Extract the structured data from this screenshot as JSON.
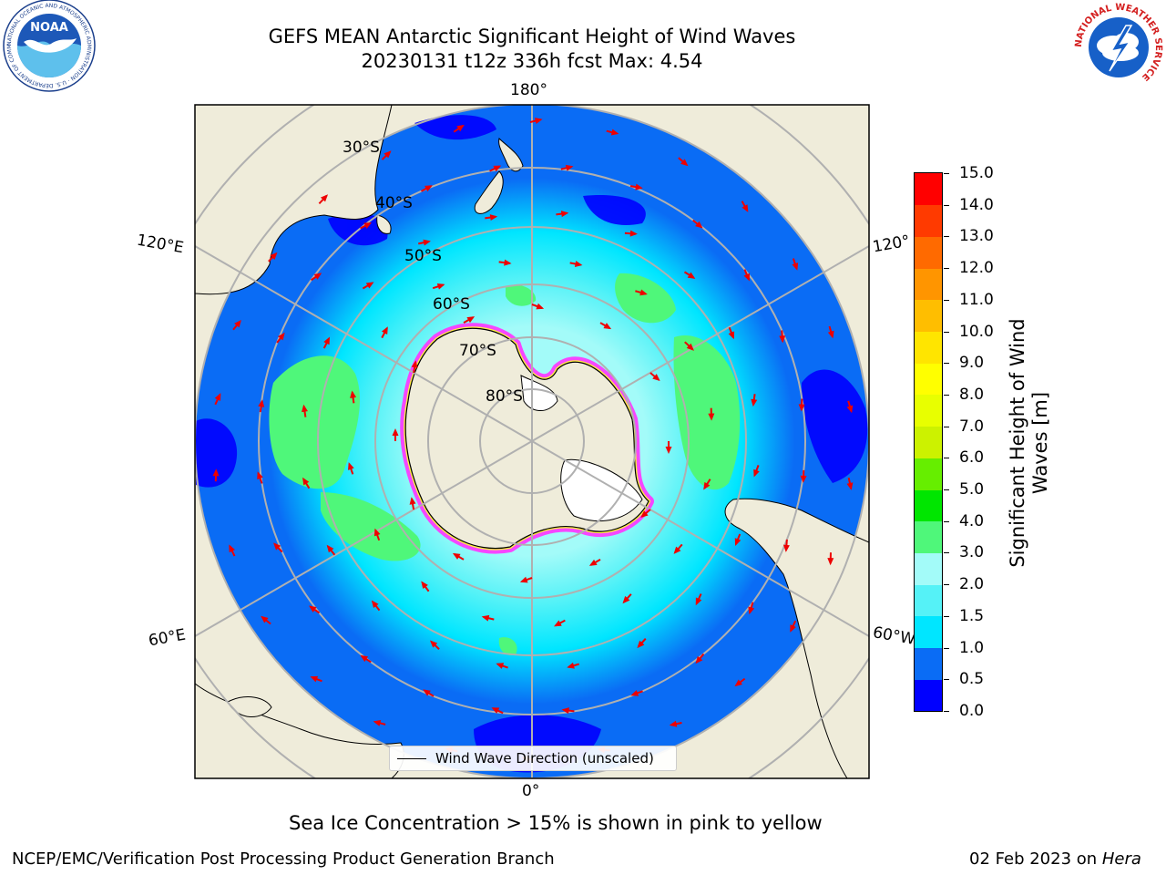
{
  "title": {
    "line1": "GEFS MEAN Antarctic Significant Height of Wind Waves",
    "line2": "20230131 t12z 336h fcst   Max: 4.54"
  },
  "map": {
    "projection": "south polar stereographic",
    "longitude_labels": [
      "180°",
      "120°E",
      "120°",
      "60°E",
      "60°W",
      "0°"
    ],
    "latitude_labels": [
      "30°S",
      "40°S",
      "50°S",
      "60°S",
      "70°S",
      "80°S"
    ],
    "colors": {
      "land": "#efecda",
      "graticule": "#b0b0b0",
      "arrow": "#ee0000",
      "sea_ice_low": "#ff33ff",
      "sea_ice_high": "#ffee44"
    }
  },
  "legend": {
    "label": "Wind Wave Direction (unscaled)"
  },
  "colorbar": {
    "title": "Significant Height of Wind Waves [m]",
    "title_line1": "Significant Height of Wind",
    "title_line2": "Waves [m]",
    "tick_labels": [
      "0.0",
      "0.5",
      "1.0",
      "1.5",
      "2.0",
      "3.0",
      "4.0",
      "5.0",
      "6.0",
      "7.0",
      "8.0",
      "9.0",
      "10.0",
      "11.0",
      "12.0",
      "13.0",
      "14.0",
      "15.0"
    ],
    "colors": [
      "#0000ff",
      "#0a6cf5",
      "#00e6ff",
      "#55f2f7",
      "#a3fbf9",
      "#4ff77a",
      "#00e600",
      "#66ee00",
      "#ccf200",
      "#e8ff00",
      "#ffff00",
      "#ffe500",
      "#ffbe00",
      "#ff9500",
      "#ff6a00",
      "#ff3a00",
      "#ff0000"
    ]
  },
  "footer": {
    "note": "Sea Ice Concentration > 15% is shown in pink to yellow",
    "left": "NCEP/EMC/Verification Post Processing Product Generation Branch",
    "right_date": "02 Feb 2023 on ",
    "right_host": "Hera"
  },
  "logos": {
    "noaa": {
      "text": "NOAA",
      "ring_text": "NATIONAL OCEANIC AND ATMOSPHERIC ADMINISTRATION · U.S. DEPARTMENT OF COMMERCE"
    },
    "nws": {
      "ring_text": "NATIONAL WEATHER SERVICE"
    }
  }
}
